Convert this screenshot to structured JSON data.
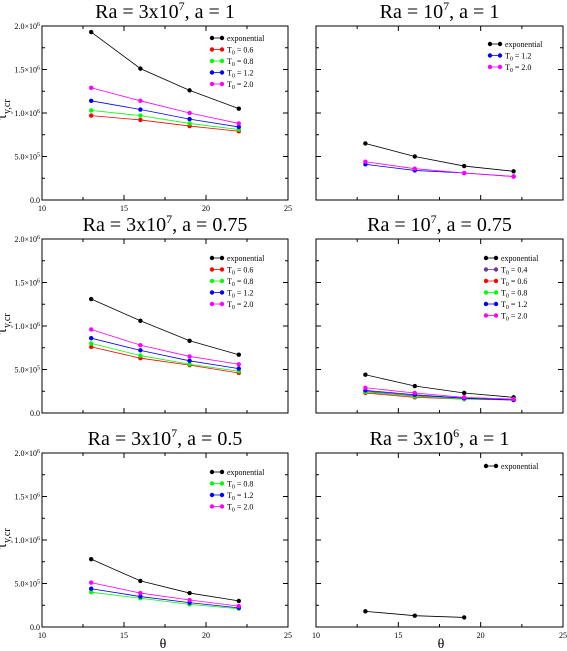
{
  "figure": {
    "ylabel": "τy,cr",
    "ylabel_main": "τ",
    "ylabel_sub": "y,cr",
    "xlabel": "θ"
  },
  "chart_data": [
    {
      "type": "line",
      "title": "Ra = 3x10⁷, a = 1",
      "title_parts": {
        "pre": "Ra = 3x10",
        "sup": "7",
        "post": ", a = 1"
      },
      "ylim": [
        0,
        2000000
      ],
      "yticks": [
        "0.0",
        "5.0×10⁵",
        "1.0×10⁶",
        "1.5×10⁶",
        "2.0×10⁶"
      ],
      "xlim": [
        10,
        25
      ],
      "xticks": [
        "10",
        "15",
        "20",
        "25"
      ],
      "series": [
        {
          "name": "exponential",
          "color": "#000000",
          "x": [
            13,
            16,
            19,
            22
          ],
          "y": [
            1930000,
            1510000,
            1260000,
            1050000
          ]
        },
        {
          "name": "T0 = 0.6",
          "name_parts": {
            "pre": "T",
            "sub": "0",
            "post": " = 0.6"
          },
          "color": "#ff0000",
          "x": [
            13,
            16,
            19,
            22
          ],
          "y": [
            970000,
            920000,
            850000,
            790000
          ]
        },
        {
          "name": "T0 = 0.8",
          "name_parts": {
            "pre": "T",
            "sub": "0",
            "post": " = 0.8"
          },
          "color": "#00ff00",
          "x": [
            13,
            16,
            19,
            22
          ],
          "y": [
            1030000,
            970000,
            880000,
            810000
          ]
        },
        {
          "name": "T0 = 1.2",
          "name_parts": {
            "pre": "T",
            "sub": "0",
            "post": " = 1.2"
          },
          "color": "#0000ff",
          "x": [
            13,
            16,
            19,
            22
          ],
          "y": [
            1140000,
            1040000,
            930000,
            840000
          ]
        },
        {
          "name": "T0 = 2.0",
          "name_parts": {
            "pre": "T",
            "sub": "0",
            "post": " = 2.0"
          },
          "color": "#ff00ff",
          "x": [
            13,
            16,
            19,
            22
          ],
          "y": [
            1290000,
            1140000,
            1000000,
            880000
          ]
        }
      ]
    },
    {
      "type": "line",
      "title": "Ra = 10⁷, a = 1",
      "title_parts": {
        "pre": "Ra = 10",
        "sup": "7",
        "post": ", a = 1"
      },
      "ylim": [
        0,
        2000000
      ],
      "yticks": [],
      "xlim": [
        10,
        25
      ],
      "xticks": [],
      "series": [
        {
          "name": "exponential",
          "color": "#000000",
          "x": [
            13,
            16,
            19,
            22
          ],
          "y": [
            650000,
            500000,
            390000,
            330000
          ]
        },
        {
          "name": "T0 = 1.2",
          "name_parts": {
            "pre": "T",
            "sub": "0",
            "post": " = 1.2"
          },
          "color": "#0000ff",
          "x": [
            13,
            16,
            19,
            22
          ],
          "y": [
            410000,
            340000,
            310000,
            270000
          ]
        },
        {
          "name": "T0 = 2.0",
          "name_parts": {
            "pre": "T",
            "sub": "0",
            "post": " = 2.0"
          },
          "color": "#ff00ff",
          "x": [
            13,
            16,
            19,
            22
          ],
          "y": [
            440000,
            360000,
            310000,
            270000
          ]
        }
      ]
    },
    {
      "type": "line",
      "title": "Ra = 3x10⁷, a = 0.75",
      "title_parts": {
        "pre": "Ra = 3x10",
        "sup": "7",
        "post": ", a = 0.75"
      },
      "ylim": [
        0,
        2000000
      ],
      "yticks": [
        "0.0",
        "5.0×10⁵",
        "1.0×10⁶",
        "1.5×10⁶",
        "2.0×10⁶"
      ],
      "xlim": [
        10,
        25
      ],
      "xticks": [],
      "series": [
        {
          "name": "exponential",
          "color": "#000000",
          "x": [
            13,
            16,
            19,
            22
          ],
          "y": [
            1310000,
            1060000,
            830000,
            670000
          ]
        },
        {
          "name": "T0 = 0.6",
          "name_parts": {
            "pre": "T",
            "sub": "0",
            "post": " = 0.6"
          },
          "color": "#ff0000",
          "x": [
            13,
            16,
            19,
            22
          ],
          "y": [
            760000,
            630000,
            550000,
            460000
          ]
        },
        {
          "name": "T0 = 0.8",
          "name_parts": {
            "pre": "T",
            "sub": "0",
            "post": " = 0.8"
          },
          "color": "#00ff00",
          "x": [
            13,
            16,
            19,
            22
          ],
          "y": [
            800000,
            660000,
            560000,
            480000
          ]
        },
        {
          "name": "T0 = 1.2",
          "name_parts": {
            "pre": "T",
            "sub": "0",
            "post": " = 1.2"
          },
          "color": "#0000ff",
          "x": [
            13,
            16,
            19,
            22
          ],
          "y": [
            860000,
            720000,
            600000,
            510000
          ]
        },
        {
          "name": "T0 = 2.0",
          "name_parts": {
            "pre": "T",
            "sub": "0",
            "post": " = 2.0"
          },
          "color": "#ff00ff",
          "x": [
            13,
            16,
            19,
            22
          ],
          "y": [
            960000,
            780000,
            650000,
            560000
          ]
        }
      ]
    },
    {
      "type": "line",
      "title": "Ra = 10⁷, a = 0.75",
      "title_parts": {
        "pre": "Ra = 10",
        "sup": "7",
        "post": ", a = 0.75"
      },
      "ylim": [
        0,
        2000000
      ],
      "yticks": [],
      "xlim": [
        10,
        25
      ],
      "xticks": [],
      "series": [
        {
          "name": "exponential",
          "color": "#000000",
          "x": [
            13,
            16,
            19,
            22
          ],
          "y": [
            440000,
            310000,
            230000,
            180000
          ]
        },
        {
          "name": "T0 = 0.4",
          "name_parts": {
            "pre": "T",
            "sub": "0",
            "post": " = 0.4"
          },
          "color": "#6a3d9a",
          "x": [
            13,
            16,
            19,
            22
          ],
          "y": [
            250000,
            200000,
            170000,
            150000
          ]
        },
        {
          "name": "T0 = 0.6",
          "name_parts": {
            "pre": "T",
            "sub": "0",
            "post": " = 0.6"
          },
          "color": "#ff0000",
          "x": [
            13,
            16,
            19,
            22
          ],
          "y": [
            230000,
            180000,
            160000,
            150000
          ]
        },
        {
          "name": "T0 = 0.8",
          "name_parts": {
            "pre": "T",
            "sub": "0",
            "post": " = 0.8"
          },
          "color": "#00ff00",
          "x": [
            13,
            16,
            19,
            22
          ],
          "y": [
            240000,
            190000,
            160000,
            150000
          ]
        },
        {
          "name": "T0 = 1.2",
          "name_parts": {
            "pre": "T",
            "sub": "0",
            "post": " = 1.2"
          },
          "color": "#0000ff",
          "x": [
            13,
            16,
            19,
            22
          ],
          "y": [
            260000,
            210000,
            170000,
            150000
          ]
        },
        {
          "name": "T0 = 2.0",
          "name_parts": {
            "pre": "T",
            "sub": "0",
            "post": " = 2.0"
          },
          "color": "#ff00ff",
          "x": [
            13,
            16,
            19,
            22
          ],
          "y": [
            290000,
            230000,
            180000,
            160000
          ]
        }
      ]
    },
    {
      "type": "line",
      "title": "Ra = 3x10⁷, a = 0.5",
      "title_parts": {
        "pre": "Ra = 3x10",
        "sup": "7",
        "post": ", a = 0.5"
      },
      "ylim": [
        0,
        2000000
      ],
      "yticks": [
        "0.0",
        "5.0×10⁵",
        "1.0×10⁶",
        "1.5×10⁶",
        "2.0×10⁶"
      ],
      "xlim": [
        10,
        25
      ],
      "xticks": [
        "10",
        "15",
        "20",
        "25"
      ],
      "series": [
        {
          "name": "exponential",
          "color": "#000000",
          "x": [
            13,
            16,
            19,
            22
          ],
          "y": [
            780000,
            530000,
            390000,
            300000
          ]
        },
        {
          "name": "T0 = 0.8",
          "name_parts": {
            "pre": "T",
            "sub": "0",
            "post": " = 0.8"
          },
          "color": "#00ff00",
          "x": [
            13,
            16,
            19,
            22
          ],
          "y": [
            400000,
            330000,
            260000,
            210000
          ]
        },
        {
          "name": "T0 = 1.2",
          "name_parts": {
            "pre": "T",
            "sub": "0",
            "post": " = 1.2"
          },
          "color": "#0000ff",
          "x": [
            13,
            16,
            19,
            22
          ],
          "y": [
            440000,
            350000,
            280000,
            220000
          ]
        },
        {
          "name": "T0 = 2.0",
          "name_parts": {
            "pre": "T",
            "sub": "0",
            "post": " = 2.0"
          },
          "color": "#ff00ff",
          "x": [
            13,
            16,
            19,
            22
          ],
          "y": [
            510000,
            390000,
            310000,
            240000
          ]
        }
      ]
    },
    {
      "type": "line",
      "title": "Ra = 3x10⁶, a = 1",
      "title_parts": {
        "pre": "Ra = 3x10",
        "sup": "6",
        "post": ", a = 1"
      },
      "ylim": [
        0,
        2000000
      ],
      "yticks": [],
      "xlim": [
        10,
        25
      ],
      "xticks": [
        "10",
        "15",
        "20",
        "25"
      ],
      "series": [
        {
          "name": "exponential",
          "color": "#000000",
          "x": [
            13,
            16,
            19
          ],
          "y": [
            180000,
            130000,
            110000
          ]
        }
      ]
    }
  ]
}
